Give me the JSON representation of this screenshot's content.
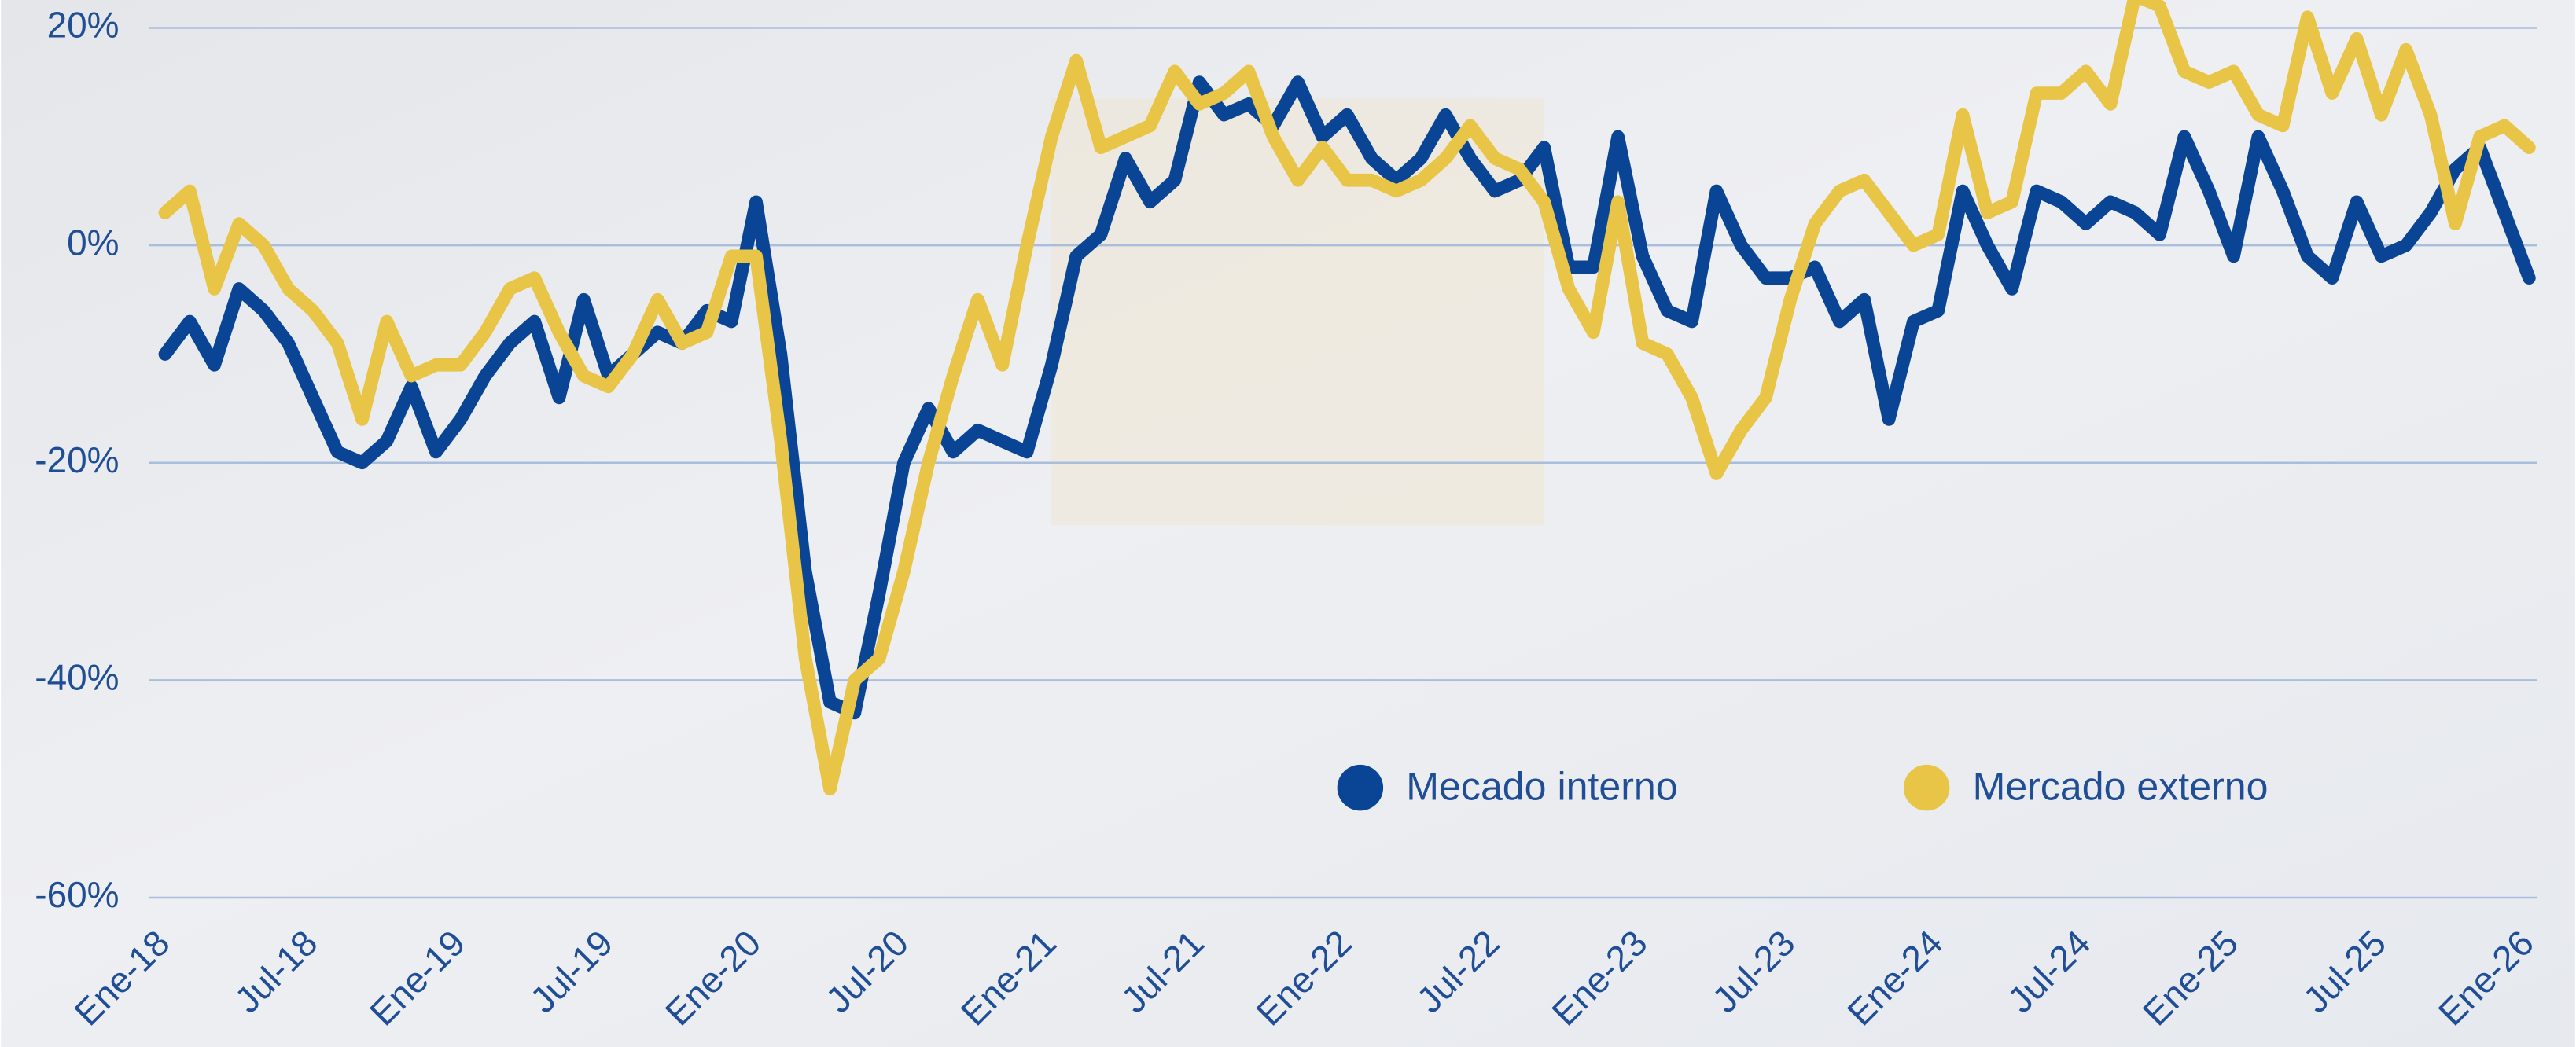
{
  "chart_data": {
    "type": "line",
    "categories": [
      "Ene-18",
      null,
      null,
      null,
      null,
      null,
      "Jul-18",
      null,
      null,
      null,
      null,
      null,
      "Ene-19",
      null,
      null,
      null,
      null,
      null,
      "Jul-19",
      null,
      null,
      null,
      null,
      null,
      "Ene-20",
      null,
      null,
      null,
      null,
      null,
      "Jul-20",
      null,
      null,
      null,
      null,
      null,
      "Ene-21",
      null,
      null,
      null,
      null,
      null,
      "Jul-21",
      null,
      null,
      null,
      null,
      null,
      "Ene-22",
      null,
      null,
      null,
      null,
      null,
      "Jul-22",
      null,
      null,
      null,
      null,
      null,
      "Ene-23",
      null,
      null,
      null,
      null,
      null,
      "Jul-23",
      null,
      null,
      null,
      null,
      null,
      "Ene-24",
      null,
      null,
      null,
      null,
      null,
      "Jul-24",
      null,
      null,
      null,
      null,
      null,
      "Ene-25",
      null,
      null,
      null,
      null,
      null,
      "Jul-25",
      null,
      null,
      null,
      null,
      null,
      "Ene-26"
    ],
    "series": [
      {
        "name": "Mecado interno",
        "color": "#0a4595",
        "values": [
          -10,
          -7,
          -11,
          -4,
          -6,
          -9,
          -14,
          -19,
          -20,
          -18,
          -13,
          -19,
          -16,
          -12,
          -9,
          -7,
          -14,
          -5,
          -12,
          -10,
          -8,
          -9,
          -6,
          -7,
          4,
          -10,
          -30,
          -42,
          -43,
          -32,
          -20,
          -15,
          -19,
          -17,
          -18,
          -19,
          -11,
          -1,
          1,
          8,
          4,
          6,
          15,
          12,
          13,
          11,
          15,
          10,
          12,
          8,
          6,
          8,
          12,
          8,
          5,
          6,
          9,
          -2,
          -2,
          10,
          -1,
          -6,
          -7,
          5,
          0,
          -3,
          -3,
          -2,
          -7,
          -5,
          -16,
          -7,
          -6,
          5,
          0,
          -4,
          5,
          4,
          2,
          4,
          3,
          1,
          10,
          5,
          -1,
          10,
          5,
          -1,
          -3,
          4,
          -1,
          0,
          3,
          7,
          9,
          3,
          -3
        ]
      },
      {
        "name": "Mercado externo",
        "color": "#e8c547",
        "values": [
          3,
          5,
          -4,
          2,
          0,
          -4,
          -6,
          -9,
          -16,
          -7,
          -12,
          -11,
          -11,
          -8,
          -4,
          -3,
          -8,
          -12,
          -13,
          -10,
          -5,
          -9,
          -8,
          -1,
          -1,
          -18,
          -38,
          -50,
          -40,
          -38,
          -30,
          -20,
          -12,
          -5,
          -11,
          0,
          10,
          17,
          9,
          10,
          11,
          16,
          13,
          14,
          16,
          10,
          6,
          9,
          6,
          6,
          5,
          6,
          8,
          11,
          8,
          7,
          4,
          -4,
          -8,
          4,
          -9,
          -10,
          -14,
          -21,
          -17,
          -14,
          -5,
          2,
          5,
          6,
          3,
          0,
          1,
          12,
          3,
          4,
          14,
          14,
          16,
          13,
          23,
          22,
          16,
          15,
          16,
          12,
          11,
          21,
          14,
          19,
          12,
          18,
          12,
          2,
          10,
          11,
          9
        ]
      }
    ],
    "yticks": [
      {
        "value": 20,
        "label": "20%"
      },
      {
        "value": 0,
        "label": "0%"
      },
      {
        "value": -20,
        "label": "-20%"
      },
      {
        "value": -40,
        "label": "-40%"
      },
      {
        "value": -60,
        "label": "-60%"
      }
    ],
    "ylim": [
      -60,
      20
    ],
    "grid": true
  }
}
